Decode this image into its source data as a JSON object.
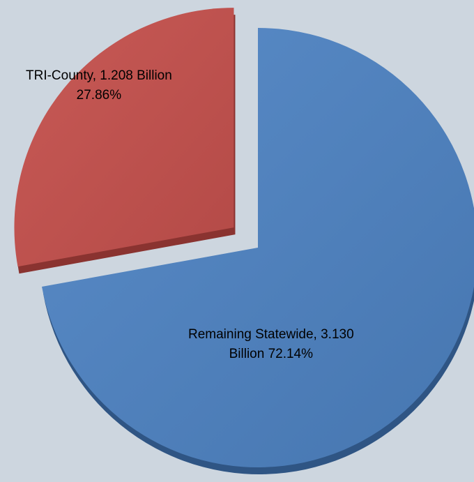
{
  "chart_data": {
    "type": "pie",
    "title": "",
    "slices": [
      {
        "name": "Remaining Statewide",
        "value": 3.13,
        "percent": 72.14,
        "label_line1": "Remaining Statewide, 3.130",
        "label_line2": "Billion 72.14%",
        "color": "#4f81bd",
        "exploded": false
      },
      {
        "name": "TRI-County",
        "value": 1.208,
        "percent": 27.86,
        "label_line1": "TRI-County, 1.208 Billion",
        "label_line2": "27.86%",
        "color": "#c0504d",
        "exploded": true
      }
    ],
    "legend": "none",
    "style": "3d"
  }
}
